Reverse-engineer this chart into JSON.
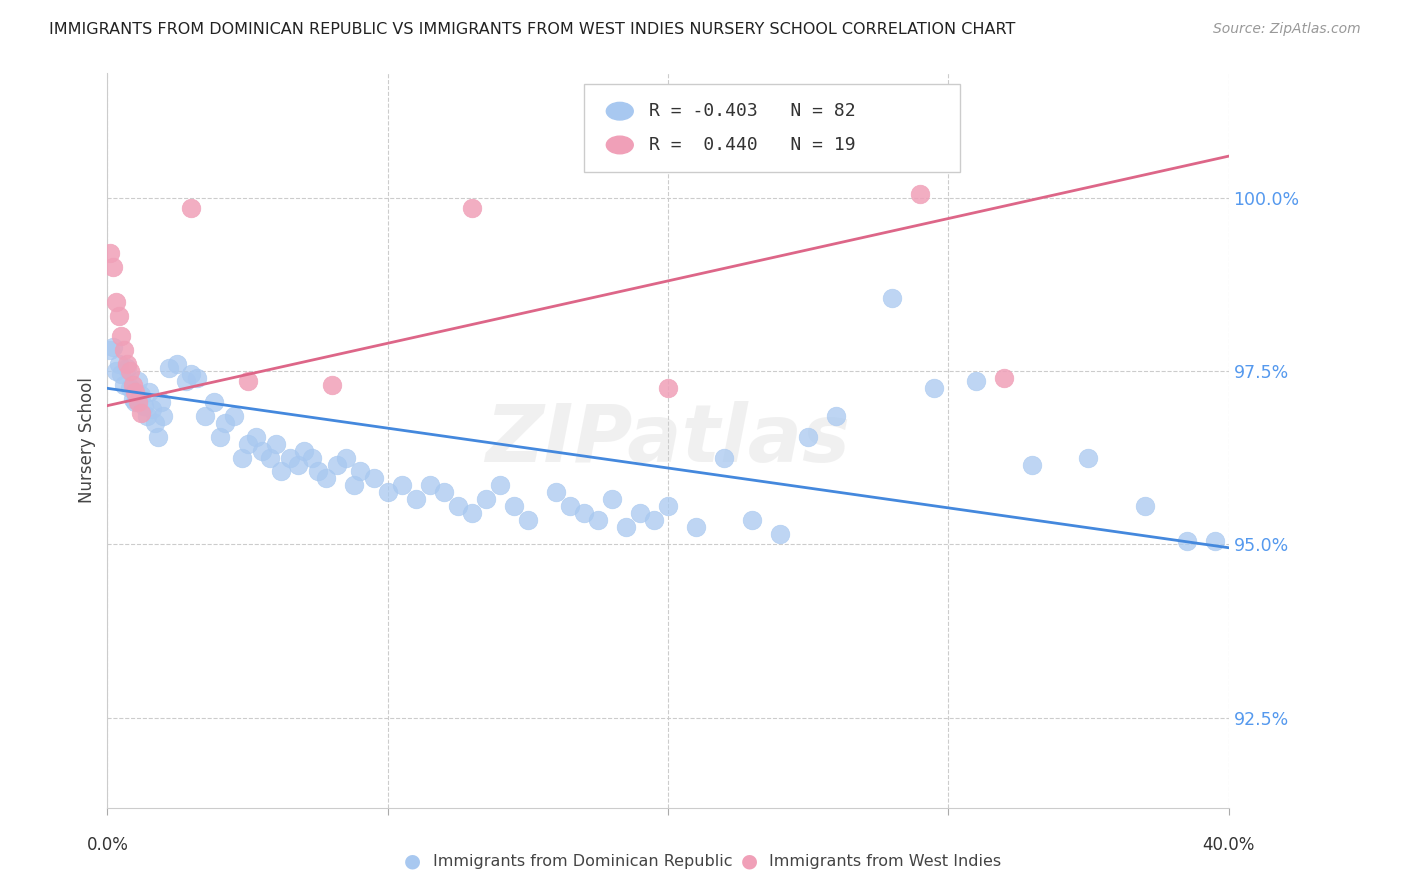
{
  "title": "IMMIGRANTS FROM DOMINICAN REPUBLIC VS IMMIGRANTS FROM WEST INDIES NURSERY SCHOOL CORRELATION CHART",
  "source": "Source: ZipAtlas.com",
  "ylabel": "Nursery School",
  "yticks": [
    92.5,
    95.0,
    97.5,
    100.0
  ],
  "ytick_labels": [
    "92.5%",
    "95.0%",
    "97.5%",
    "100.0%"
  ],
  "xlim": [
    0.0,
    0.4
  ],
  "ylim": [
    91.2,
    101.8
  ],
  "legend_blue_r": "-0.403",
  "legend_blue_n": "82",
  "legend_pink_r": "0.440",
  "legend_pink_n": "19",
  "legend_label_blue": "Immigrants from Dominican Republic",
  "legend_label_pink": "Immigrants from West Indies",
  "blue_color": "#a8c8f0",
  "pink_color": "#f0a0b8",
  "line_blue_color": "#4488dd",
  "line_pink_color": "#dd6688",
  "watermark": "ZIPatlas",
  "blue_line_x0": 0.0,
  "blue_line_y0": 97.25,
  "blue_line_x1": 0.4,
  "blue_line_y1": 94.95,
  "pink_line_x0": 0.0,
  "pink_line_y0": 97.0,
  "pink_line_x1": 0.4,
  "pink_line_y1": 100.6,
  "blue_x": [
    0.001,
    0.002,
    0.003,
    0.004,
    0.005,
    0.006,
    0.007,
    0.008,
    0.009,
    0.01,
    0.011,
    0.012,
    0.013,
    0.014,
    0.015,
    0.016,
    0.017,
    0.018,
    0.019,
    0.02,
    0.022,
    0.025,
    0.028,
    0.03,
    0.032,
    0.035,
    0.038,
    0.04,
    0.042,
    0.045,
    0.048,
    0.05,
    0.053,
    0.055,
    0.058,
    0.06,
    0.062,
    0.065,
    0.068,
    0.07,
    0.073,
    0.075,
    0.078,
    0.082,
    0.085,
    0.088,
    0.09,
    0.095,
    0.1,
    0.105,
    0.11,
    0.115,
    0.12,
    0.125,
    0.13,
    0.135,
    0.14,
    0.145,
    0.15,
    0.16,
    0.165,
    0.17,
    0.175,
    0.18,
    0.185,
    0.19,
    0.195,
    0.2,
    0.21,
    0.22,
    0.23,
    0.24,
    0.25,
    0.26,
    0.28,
    0.295,
    0.31,
    0.33,
    0.35,
    0.37,
    0.385,
    0.395
  ],
  "blue_y": [
    97.8,
    97.85,
    97.5,
    97.6,
    97.45,
    97.3,
    97.55,
    97.25,
    97.1,
    97.05,
    97.35,
    97.15,
    97.0,
    96.85,
    97.2,
    96.95,
    96.75,
    96.55,
    97.05,
    96.85,
    97.55,
    97.6,
    97.35,
    97.45,
    97.4,
    96.85,
    97.05,
    96.55,
    96.75,
    96.85,
    96.25,
    96.45,
    96.55,
    96.35,
    96.25,
    96.45,
    96.05,
    96.25,
    96.15,
    96.35,
    96.25,
    96.05,
    95.95,
    96.15,
    96.25,
    95.85,
    96.05,
    95.95,
    95.75,
    95.85,
    95.65,
    95.85,
    95.75,
    95.55,
    95.45,
    95.65,
    95.85,
    95.55,
    95.35,
    95.75,
    95.55,
    95.45,
    95.35,
    95.65,
    95.25,
    95.45,
    95.35,
    95.55,
    95.25,
    96.25,
    95.35,
    95.15,
    96.55,
    96.85,
    98.55,
    97.25,
    97.35,
    96.15,
    96.25,
    95.55,
    95.05,
    95.05
  ],
  "pink_x": [
    0.001,
    0.002,
    0.003,
    0.004,
    0.005,
    0.006,
    0.007,
    0.008,
    0.009,
    0.01,
    0.011,
    0.012,
    0.03,
    0.05,
    0.08,
    0.13,
    0.2,
    0.29,
    0.32
  ],
  "pink_y": [
    99.2,
    99.0,
    98.5,
    98.3,
    98.0,
    97.8,
    97.6,
    97.5,
    97.3,
    97.2,
    97.05,
    96.9,
    99.85,
    97.35,
    97.3,
    99.85,
    97.25,
    100.05,
    97.4
  ]
}
